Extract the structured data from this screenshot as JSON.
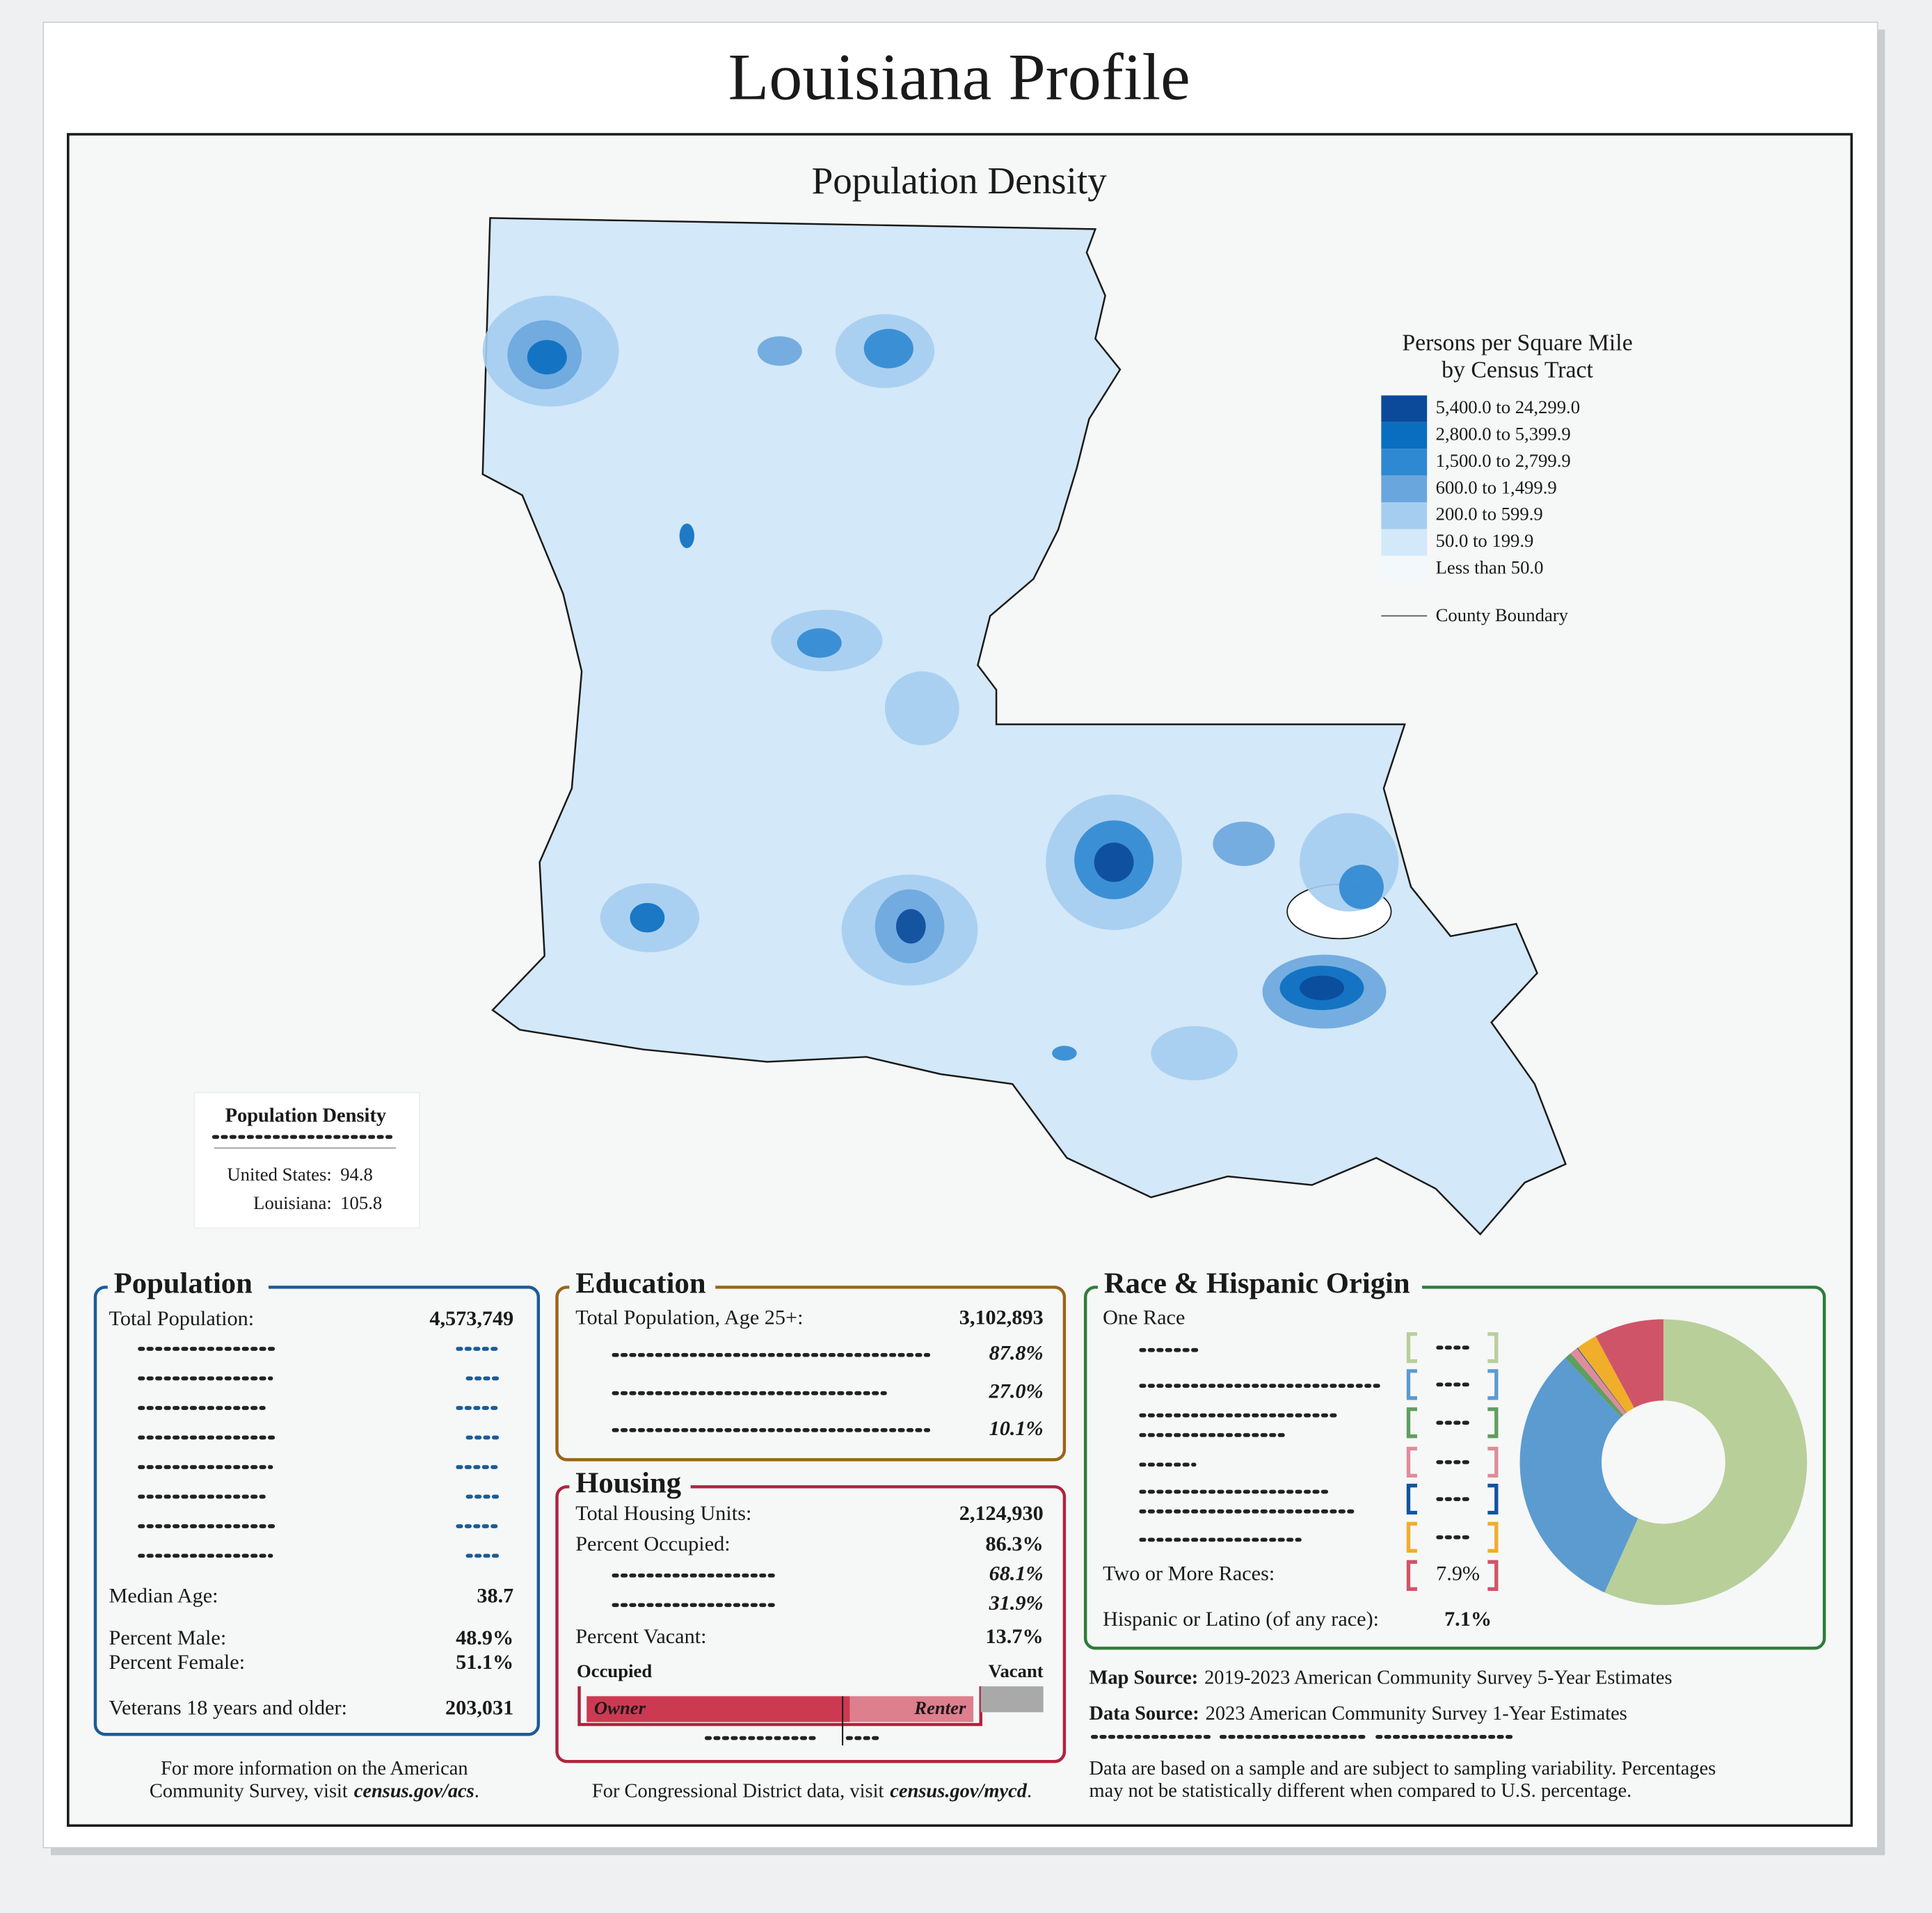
{
  "header": {
    "title": "Louisiana Profile"
  },
  "map": {
    "title": "Population Density",
    "legend": {
      "title": [
        "Persons per Square Mile",
        "by Census Tract"
      ],
      "items": [
        {
          "label": "5,400.0 to 24,299.0",
          "color": "#0b4a9a"
        },
        {
          "label": "2,800.0 to 5,399.9",
          "color": "#0a6ec0"
        },
        {
          "label": "1,500.0 to 2,799.9",
          "color": "#2f88d2"
        },
        {
          "label": "600.0 to 1,499.9",
          "color": "#6aa6de"
        },
        {
          "label": "200.0 to 599.9",
          "color": "#a5cdef"
        },
        {
          "label": "50.0 to 199.9",
          "color": "#d3e8f8"
        },
        {
          "label": "Less than 50.0",
          "color": "#f3f8fc"
        }
      ],
      "boundary_label": "County Boundary"
    }
  },
  "density_box": {
    "title": "Population Density",
    "rows": [
      {
        "label": "United States:",
        "value": 94.8
      },
      {
        "label": "Louisiana:",
        "value": 105.8
      }
    ]
  },
  "population": {
    "title": "Population",
    "rows": [
      {
        "label": "Total Population:",
        "value": "4,573,749"
      },
      {
        "label": "Median Age:",
        "value": "38.7"
      },
      {
        "label": "Percent Male:",
        "value": "48.9%"
      },
      {
        "label": "Percent Female:",
        "value": "51.1%"
      },
      {
        "label": "Veterans 18 years and older:",
        "value": "203,031"
      }
    ],
    "footer": {
      "line1": "For more information on the American",
      "prefix": "Community Survey, visit",
      "link": "census.gov/acs",
      "suffix": "."
    }
  },
  "education": {
    "title": "Education",
    "total": {
      "label": "Total Population, Age 25+:",
      "value": "3,102,893"
    },
    "percents": [
      "87.8%",
      "27.0%",
      "10.1%"
    ]
  },
  "housing": {
    "title": "Housing",
    "total": {
      "label": "Total Housing Units:",
      "value": "2,124,930"
    },
    "occupied": {
      "label": "Percent Occupied:",
      "value": 86.3,
      "value_label": "86.3%"
    },
    "owner": {
      "value": 68.1,
      "value_label": "68.1%"
    },
    "renter": {
      "value": 31.9,
      "value_label": "31.9%"
    },
    "vacant": {
      "label": "Percent Vacant:",
      "value": 13.7,
      "value_label": "13.7%"
    },
    "bar_labels": {
      "occupied": "Occupied",
      "vacant": "Vacant",
      "owner": "Owner",
      "renter": "Renter"
    },
    "footer": {
      "prefix": "For Congressional District data, visit",
      "link": "census.gov/mycd",
      "suffix": "."
    }
  },
  "race": {
    "title": "Race & Hispanic Origin",
    "one_race": "One Race",
    "donut": {
      "colors": [
        "#b8cf9a",
        "#5b9bd0",
        "#5f9e60",
        "#df8c9a",
        "#1055a0",
        "#f0ae2a",
        "#d05468"
      ],
      "values": [
        57.3,
        31.6,
        0.8,
        0.9,
        0.1,
        2.4,
        7.9
      ]
    },
    "two_or_more": {
      "label": "Two or More Races:",
      "value_label": "7.9%"
    },
    "hispanic": {
      "label": "Hispanic or Latino (of any race):",
      "value": "7.1%"
    }
  },
  "sources": {
    "map_source": {
      "label": "Map Source:",
      "text": "2019-2023 American Community Survey 5-Year Estimates"
    },
    "data_source": {
      "label": "Data Source:",
      "text": "2023 American Community Survey 1-Year Estimates"
    },
    "note": [
      "Data are based on a sample and are subject to sampling variability. Percentages",
      "may not be statistically different when compared to U.S. percentage."
    ]
  }
}
